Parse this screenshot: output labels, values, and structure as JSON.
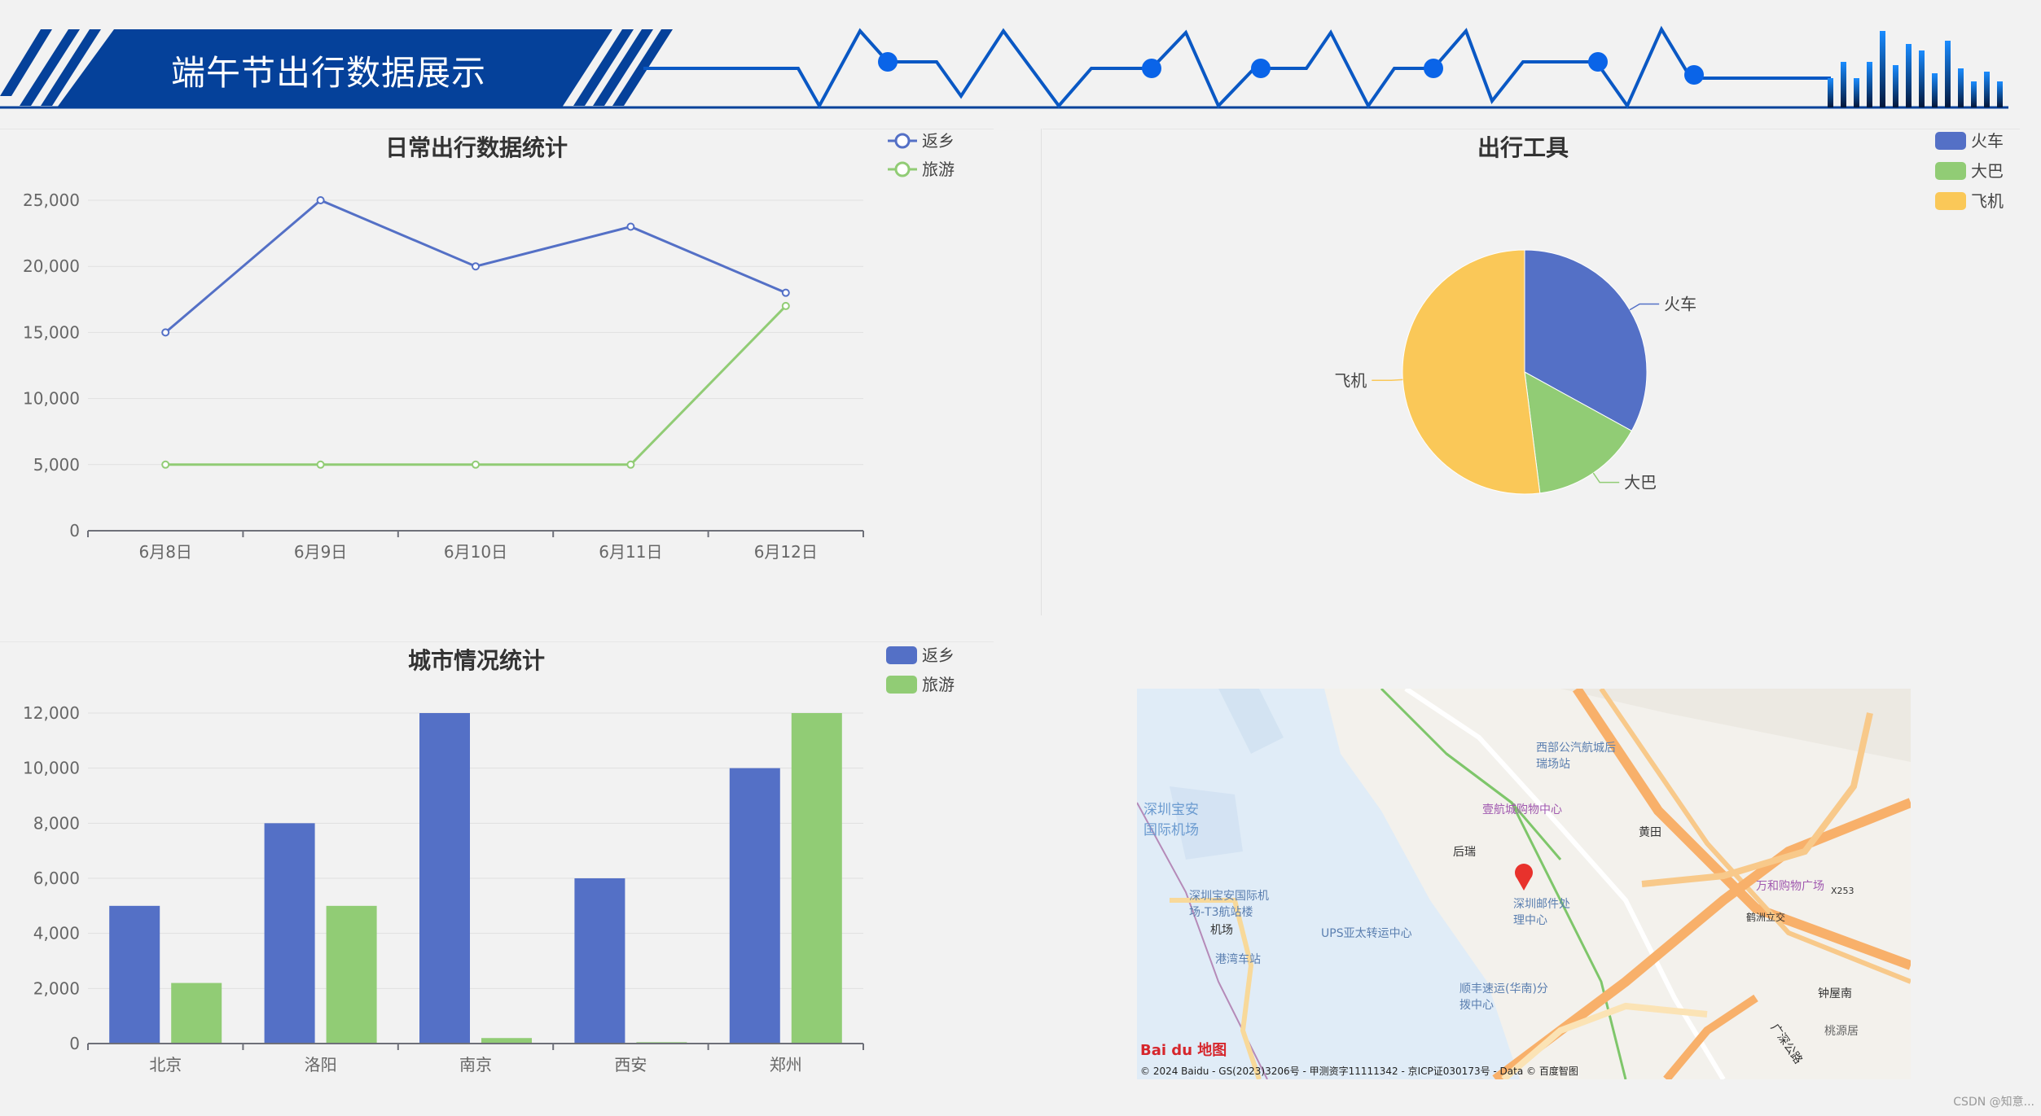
{
  "header": {
    "title": "端午节出行数据展示",
    "accent": "#05419a"
  },
  "line_panel": {
    "title": "日常出行数据统计",
    "legend": [
      "返乡",
      "旅游"
    ],
    "colors": [
      "#5470c6",
      "#91cc75"
    ],
    "y_ticks": [
      "25,000",
      "20,000",
      "15,000",
      "10,000",
      "5,000",
      "0"
    ],
    "chart_data": {
      "type": "line",
      "categories": [
        "6月8日",
        "6月9日",
        "6月10日",
        "6月11日",
        "6月12日"
      ],
      "series": [
        {
          "name": "返乡",
          "values": [
            15000,
            25000,
            20000,
            23000,
            18000
          ]
        },
        {
          "name": "旅游",
          "values": [
            5000,
            5000,
            5000,
            5000,
            17000
          ]
        }
      ],
      "ylim": [
        0,
        25000
      ]
    }
  },
  "pie_panel": {
    "title": "出行工具",
    "legend": [
      "火车",
      "大巴",
      "飞机"
    ],
    "colors": [
      "#5470c6",
      "#91cc75",
      "#fac858"
    ],
    "chart_data": {
      "type": "pie",
      "labels": [
        "火车",
        "大巴",
        "飞机"
      ],
      "values": [
        33,
        15,
        52
      ]
    }
  },
  "bar_panel": {
    "title": "城市情况统计",
    "legend": [
      "返乡",
      "旅游"
    ],
    "colors": [
      "#5470c6",
      "#91cc75"
    ],
    "y_ticks": [
      "12,000",
      "10,000",
      "8,000",
      "6,000",
      "4,000",
      "2,000",
      "0"
    ],
    "chart_data": {
      "type": "bar",
      "categories": [
        "北京",
        "洛阳",
        "南京",
        "西安",
        "郑州"
      ],
      "series": [
        {
          "name": "返乡",
          "values": [
            5000,
            8000,
            12000,
            6000,
            10000
          ]
        },
        {
          "name": "旅游",
          "values": [
            2200,
            5000,
            200,
            50,
            12000
          ]
        }
      ],
      "ylim": [
        0,
        12000
      ]
    }
  },
  "map": {
    "labels": {
      "airport": "深圳宝安国际机场",
      "t3": "深圳宝安国际机场-T3航站楼",
      "airport_station": "机场",
      "houyu": "后瑞",
      "huangtian": "黄田",
      "mall": "壹航城购物中心",
      "xibu": "西部公汽航城后瑞场站",
      "ups": "UPS亚太转运中心",
      "post": "深圳邮件处理中心",
      "shunfeng": "顺丰速运(华南)分拨中心",
      "wanhe": "万和购物广场",
      "zhongwu": "钟屋南",
      "hezhou": "鹤洲立交",
      "bus": "港湾车站",
      "taoyuan": "桃源居",
      "road": "广深公路",
      "x253": "X253"
    },
    "logo": "Bai du 地图",
    "copyright": "© 2024 Baidu - GS(2023)3206号 - 甲测资字11111342 - 京ICP证030173号 - Data © 百度智图"
  },
  "watermark": "CSDN @知意..."
}
